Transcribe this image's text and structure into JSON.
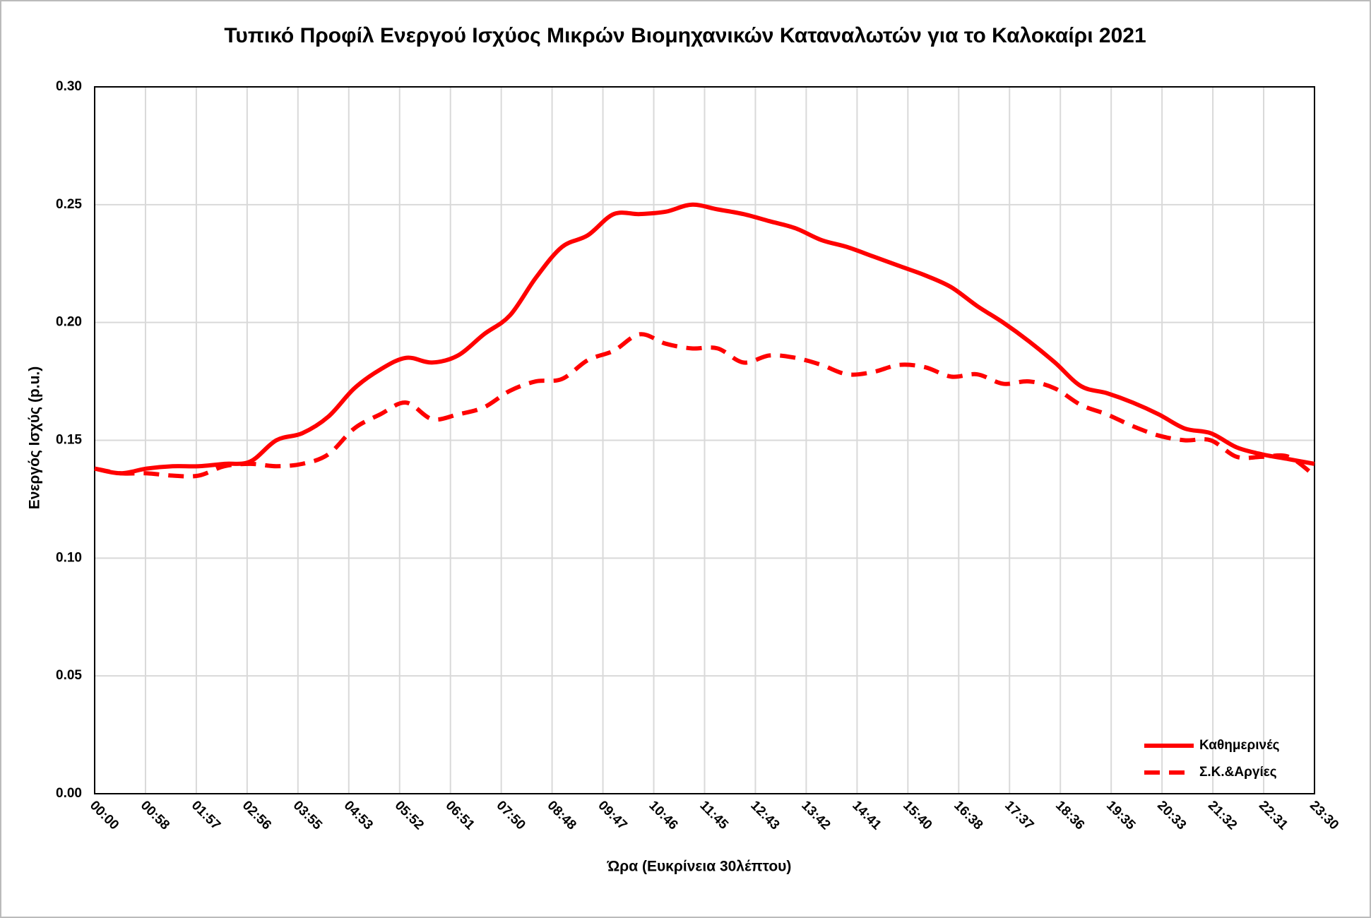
{
  "chart_data": {
    "type": "line",
    "title": "Τυπικό Προφίλ Ενεργού Ισχύος Μικρών Βιομηχανικών Καταναλωτών για το Καλοκαίρι 2021",
    "xlabel": "Ώρα (Ευκρίνεια 30λέπτου)",
    "ylabel": "Ενεργός Ισχύς (p.u.)",
    "x": [
      0,
      30,
      60,
      90,
      120,
      150,
      180,
      210,
      240,
      270,
      300,
      330,
      360,
      390,
      420,
      450,
      480,
      510,
      540,
      570,
      600,
      630,
      660,
      690,
      720,
      750,
      780,
      810,
      840,
      870,
      900,
      930,
      960,
      990,
      1020,
      1050,
      1080,
      1110,
      1140,
      1170,
      1200,
      1230,
      1260,
      1290,
      1320,
      1350,
      1380,
      1410
    ],
    "series": [
      {
        "name": "Καθημερινές",
        "color": "#ff0000",
        "style": "solid",
        "values": [
          0.138,
          0.136,
          0.138,
          0.139,
          0.139,
          0.14,
          0.141,
          0.15,
          0.153,
          0.16,
          0.172,
          0.18,
          0.185,
          0.183,
          0.186,
          0.195,
          0.203,
          0.219,
          0.232,
          0.237,
          0.246,
          0.246,
          0.247,
          0.25,
          0.248,
          0.246,
          0.243,
          0.24,
          0.235,
          0.232,
          0.228,
          0.224,
          0.22,
          0.215,
          0.207,
          0.2,
          0.192,
          0.183,
          0.173,
          0.17,
          0.166,
          0.161,
          0.155,
          0.153,
          0.147,
          0.144,
          0.142,
          0.14
        ]
      },
      {
        "name": "Σ.Κ.&Αργίες",
        "color": "#ff0000",
        "style": "dashed",
        "values": [
          0.138,
          0.136,
          0.136,
          0.135,
          0.135,
          0.139,
          0.14,
          0.139,
          0.14,
          0.144,
          0.155,
          0.161,
          0.166,
          0.159,
          0.161,
          0.164,
          0.171,
          0.175,
          0.176,
          0.184,
          0.188,
          0.195,
          0.191,
          0.189,
          0.189,
          0.183,
          0.186,
          0.185,
          0.182,
          0.178,
          0.179,
          0.182,
          0.181,
          0.177,
          0.178,
          0.174,
          0.175,
          0.172,
          0.165,
          0.161,
          0.156,
          0.152,
          0.15,
          0.15,
          0.143,
          0.143,
          0.143,
          0.135
        ]
      }
    ],
    "xlim": [
      0,
      1410
    ],
    "xticks": [
      {
        "value": 0,
        "label": "00:00"
      },
      {
        "value": 58.75,
        "label": "00:58"
      },
      {
        "value": 117.5,
        "label": "01:57"
      },
      {
        "value": 176.25,
        "label": "02:56"
      },
      {
        "value": 235,
        "label": "03:55"
      },
      {
        "value": 293.75,
        "label": "04:53"
      },
      {
        "value": 352.5,
        "label": "05:52"
      },
      {
        "value": 411.25,
        "label": "06:51"
      },
      {
        "value": 470,
        "label": "07:50"
      },
      {
        "value": 528.75,
        "label": "08:48"
      },
      {
        "value": 587.5,
        "label": "09:47"
      },
      {
        "value": 646.25,
        "label": "10:46"
      },
      {
        "value": 705,
        "label": "11:45"
      },
      {
        "value": 763.75,
        "label": "12:43"
      },
      {
        "value": 822.5,
        "label": "13:42"
      },
      {
        "value": 881.25,
        "label": "14:41"
      },
      {
        "value": 940,
        "label": "15:40"
      },
      {
        "value": 998.75,
        "label": "16:38"
      },
      {
        "value": 1057.5,
        "label": "17:37"
      },
      {
        "value": 1116.25,
        "label": "18:36"
      },
      {
        "value": 1175,
        "label": "19:35"
      },
      {
        "value": 1233.75,
        "label": "20:33"
      },
      {
        "value": 1292.5,
        "label": "21:32"
      },
      {
        "value": 1351.25,
        "label": "22:31"
      },
      {
        "value": 1410,
        "label": "23:30"
      }
    ],
    "ylim": [
      0,
      0.3
    ],
    "yticks": [
      {
        "value": 0,
        "label": "0.00"
      },
      0.05,
      {
        "value": 0.1,
        "label": "0.10"
      },
      0.15,
      {
        "value": 0.2,
        "label": "0.20"
      },
      0.25,
      {
        "value": 0.3,
        "label": "0.30"
      }
    ],
    "grid": true,
    "legend": "lower right"
  }
}
